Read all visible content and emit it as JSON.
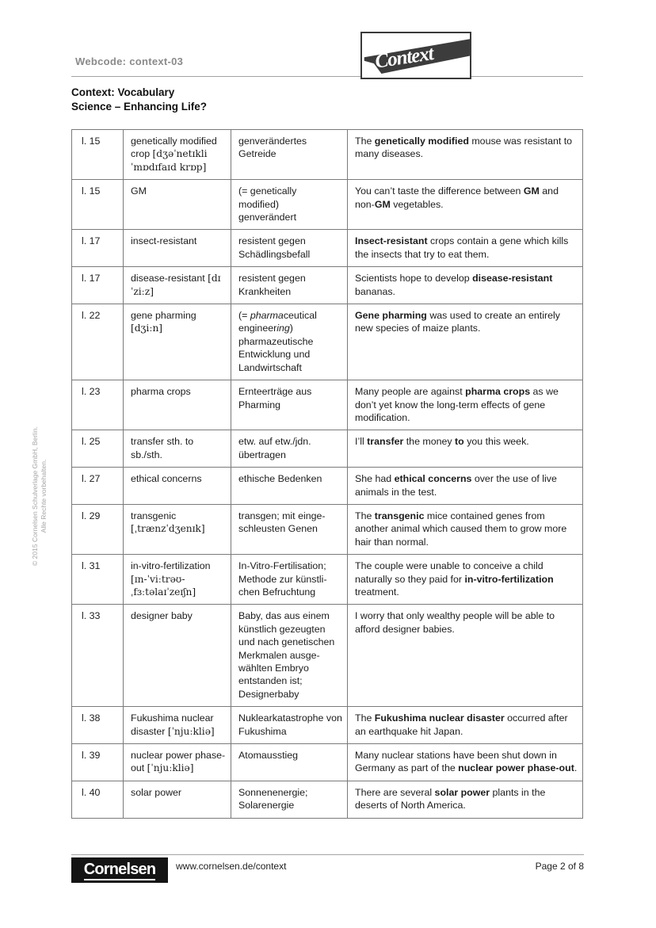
{
  "colors": {
    "text": "#1c1c1c",
    "muted_gray": "#8a8a8a",
    "table_border": "#7a7a7a",
    "logo_band": "#3c3c3c",
    "footer_logo_bg": "#141414"
  },
  "header": {
    "webcode": "Webcode: context-03",
    "logo_text": "Context",
    "title_line1": "Context: Vocabulary",
    "title_line2": "Science – Enhancing Life?"
  },
  "sidebar": {
    "copyright_line1": "© 2015 Cornelsen Schulverlage GmbH, Berlin.",
    "copyright_line2": "Alle Rechte vorbehalten."
  },
  "table": {
    "rows": [
      {
        "line": "l. 15",
        "term": [
          {
            "t": "genetically modified crop "
          },
          {
            "t": "[dʒəˈnetɪkli ˈmɒdɪfaɪd krɒp]",
            "s": "ph"
          }
        ],
        "german": [
          {
            "t": "genverändertes Getreide"
          }
        ],
        "example": [
          {
            "t": "The "
          },
          {
            "t": "genetically modified",
            "s": "b"
          },
          {
            "t": " mouse was resistant to many diseases."
          }
        ]
      },
      {
        "line": "l. 15",
        "term": [
          {
            "t": "GM"
          }
        ],
        "german": [
          {
            "t": "(= genetically"
          },
          {
            "br": true
          },
          {
            "t": "modified)"
          },
          {
            "br": true
          },
          {
            "t": "genverändert"
          }
        ],
        "example": [
          {
            "t": "You can’t taste the difference between "
          },
          {
            "t": "GM",
            "s": "b"
          },
          {
            "t": " and non-"
          },
          {
            "t": "GM",
            "s": "b"
          },
          {
            "t": " vegetables."
          }
        ]
      },
      {
        "line": "l. 17",
        "term": [
          {
            "t": "insect-resistant"
          }
        ],
        "german": [
          {
            "t": "resistent gegen Schädlingsbefall"
          }
        ],
        "example": [
          {
            "t": "Insect-resistant",
            "s": "b"
          },
          {
            "t": " crops contain a gene which kills the insects that try to eat them."
          }
        ]
      },
      {
        "line": "l. 17",
        "term": [
          {
            "t": "disease-resistant "
          },
          {
            "t": "[dɪˈziːz]",
            "s": "ph"
          }
        ],
        "german": [
          {
            "t": "resistent gegen Krankheiten"
          }
        ],
        "example": [
          {
            "t": "Scientists hope to develop "
          },
          {
            "t": "disease-resistant",
            "s": "b"
          },
          {
            "t": " bananas."
          }
        ]
      },
      {
        "line": "l. 22",
        "term": [
          {
            "t": "gene pharming"
          },
          {
            "br": true
          },
          {
            "t": "[dʒiːn]",
            "s": "ph"
          }
        ],
        "german": [
          {
            "t": "(= "
          },
          {
            "t": "pharma",
            "s": "i"
          },
          {
            "t": "ceutical engineer"
          },
          {
            "t": "ing",
            "s": "i"
          },
          {
            "t": ") pharmazeutische Entwicklung und Landwirtschaft"
          }
        ],
        "example": [
          {
            "t": "Gene pharming",
            "s": "b"
          },
          {
            "t": " was used to create an entirely new species of maize plants."
          }
        ]
      },
      {
        "line": "l. 23",
        "term": [
          {
            "t": "pharma crops"
          }
        ],
        "german": [
          {
            "t": "Ernteerträge aus Pharming"
          }
        ],
        "example": [
          {
            "t": "Many people are against "
          },
          {
            "t": "pharma crops",
            "s": "b"
          },
          {
            "t": " as we don’t yet know the long-term effects of gene modification."
          }
        ]
      },
      {
        "line": "l. 25",
        "term": [
          {
            "t": "transfer sth. to sb./sth."
          }
        ],
        "german": [
          {
            "t": "etw. auf etw./jdn. übertragen"
          }
        ],
        "example": [
          {
            "t": "I’ll "
          },
          {
            "t": "transfer",
            "s": "b"
          },
          {
            "t": " the money "
          },
          {
            "t": "to",
            "s": "b"
          },
          {
            "t": " you this week."
          }
        ]
      },
      {
        "line": "l. 27",
        "term": [
          {
            "t": "ethical concerns"
          }
        ],
        "german": [
          {
            "t": "ethische Bedenken"
          }
        ],
        "example": [
          {
            "t": "She had "
          },
          {
            "t": "ethical concerns",
            "s": "b"
          },
          {
            "t": " over the use of live animals in the test."
          }
        ]
      },
      {
        "line": "l. 29",
        "term": [
          {
            "t": "transgenic"
          },
          {
            "br": true
          },
          {
            "t": "[ˌtrænzˈdʒenɪk]",
            "s": "ph"
          }
        ],
        "german": [
          {
            "t": "transgen; mit einge-"
          },
          {
            "br": true
          },
          {
            "t": "schleusten Genen"
          }
        ],
        "example": [
          {
            "t": "The "
          },
          {
            "t": "transgenic",
            "s": "b"
          },
          {
            "t": " mice contained genes from another animal which caused them to grow more hair than normal."
          }
        ]
      },
      {
        "line": "l. 31",
        "term": [
          {
            "t": "in-vitro-fertilization"
          },
          {
            "br": true
          },
          {
            "t": "[ɪn-ˈviːtrəʊ-",
            "s": "ph"
          },
          {
            "br": true
          },
          {
            "t": "ˌfɜːtəlaɪˈzeɪʃn]",
            "s": "ph"
          }
        ],
        "german": [
          {
            "t": "In-Vitro-Fertilisation;"
          },
          {
            "br": true
          },
          {
            "t": "Methode zur künstli-"
          },
          {
            "br": true
          },
          {
            "t": "chen Befruchtung"
          }
        ],
        "example": [
          {
            "t": "The couple were unable to conceive a child naturally so they paid for "
          },
          {
            "t": "in-vitro-fertilization",
            "s": "b"
          },
          {
            "t": " treatment."
          }
        ]
      },
      {
        "line": "l. 33",
        "term": [
          {
            "t": "designer baby"
          }
        ],
        "german": [
          {
            "t": "Baby, das aus einem künstlich gezeugten und nach genetischen Merkmalen ausge-"
          },
          {
            "br": true
          },
          {
            "t": "wählten Embryo entstanden ist; Designerbaby"
          }
        ],
        "example": [
          {
            "t": "I worry that only wealthy people will be able to afford designer babies."
          }
        ]
      },
      {
        "line": "l. 38",
        "term": [
          {
            "t": "Fukushima nuclear disaster "
          },
          {
            "t": "[ˈnjuːkliə]",
            "s": "ph"
          }
        ],
        "german": [
          {
            "t": "Nuklearkatastrophe von Fukushima"
          }
        ],
        "example": [
          {
            "t": "The "
          },
          {
            "t": "Fukushima nuclear disaster",
            "s": "b"
          },
          {
            "t": " occurred after an earthquake hit Japan."
          }
        ]
      },
      {
        "line": "l. 39",
        "term": [
          {
            "t": "nuclear power phase-out "
          },
          {
            "t": "[ˈnjuːkliə]",
            "s": "ph"
          }
        ],
        "german": [
          {
            "t": "Atomausstieg"
          }
        ],
        "example": [
          {
            "t": "Many nuclear stations have been shut down in Germany as part of the "
          },
          {
            "t": "nuclear power phase-out",
            "s": "b"
          },
          {
            "t": "."
          }
        ]
      },
      {
        "line": "l. 40",
        "term": [
          {
            "t": "solar power"
          }
        ],
        "german": [
          {
            "t": "Sonnenenergie; Solarenergie"
          }
        ],
        "example": [
          {
            "t": "There are several "
          },
          {
            "t": "solar power",
            "s": "b"
          },
          {
            "t": " plants in the deserts of North America."
          }
        ]
      }
    ]
  },
  "footer": {
    "logo_text": "Cornelsen",
    "url": "www.cornelsen.de/context",
    "page": "Page 2 of 8"
  }
}
